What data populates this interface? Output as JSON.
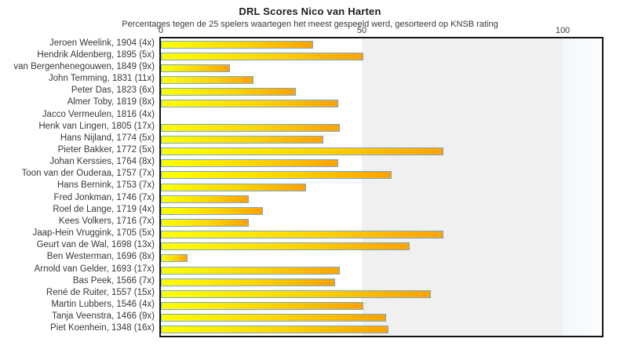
{
  "page": {
    "title": "DRL Scores Nico van Harten",
    "subtitle": "Percentages tegen de 25 spelers waartegen het meest gespeeld werd, gesorteerd op KNSB rating"
  },
  "chart_data": {
    "type": "bar",
    "orientation": "horizontal",
    "title": "DRL Scores Nico van Harten",
    "subtitle": "Percentages tegen de 25 spelers waartegen het meest gespeeld werd, gesorteerd op KNSB rating",
    "xlabel": "",
    "ylabel": "",
    "xlim": [
      0,
      100
    ],
    "x_ticks": [
      0,
      50,
      100
    ],
    "legend": false,
    "grid": "band (gray 50-100)",
    "categories": [
      "Jeroen Weelink, 1904 (4x)",
      "Hendrik Aldenberg, 1895 (5x)",
      "van Bergenhenegouwen, 1849 (9x)",
      "John Temming, 1831 (11x)",
      "Peter Das, 1823 (6x)",
      "Almer Toby, 1819 (8x)",
      "Jacco Vermeulen, 1816 (4x)",
      "Henk van Lingen, 1805 (17x)",
      "Hans Nijland, 1774 (5x)",
      "Pieter Bakker, 1772 (5x)",
      "Johan Kerssies, 1764 (8x)",
      "Toon van der Ouderaa, 1757 (7x)",
      "Hans Bernink, 1753 (7x)",
      "Fred Jonkman, 1746 (7x)",
      "Roel de Lange, 1719 (4x)",
      "Kees Volkers, 1716 (7x)",
      "Jaap-Hein Vruggink, 1705 (5x)",
      "Geurt van de Wal, 1698 (13x)",
      "Ben Westerman, 1696 (8x)",
      "Arnold van Gelder, 1693 (17x)",
      "Bas Peek, 1566 (7x)",
      "René de Ruiter, 1557 (15x)",
      "Martin Lubbers, 1546 (4x)",
      "Tanja Veenstra, 1466 (9x)",
      "Piet Koenhein, 1348 (16x)"
    ],
    "values": [
      37.5,
      50,
      16.7,
      22.7,
      33.3,
      43.8,
      0,
      44.1,
      40,
      70,
      43.8,
      57.1,
      35.7,
      21.4,
      25,
      21.4,
      70,
      61.5,
      6.3,
      44.1,
      42.9,
      66.7,
      50,
      55.6,
      56.3
    ],
    "colors": {
      "bar_gradient_start": "#ffff00",
      "bar_gradient_end": "#ffa200",
      "bar_border": "#74a9d8",
      "band_0_50": "#ffffff",
      "band_50_100": "#f0f0f0",
      "band_beyond_100": "#f3f8fb",
      "plot_border": "#141414",
      "text": "#383838"
    }
  }
}
